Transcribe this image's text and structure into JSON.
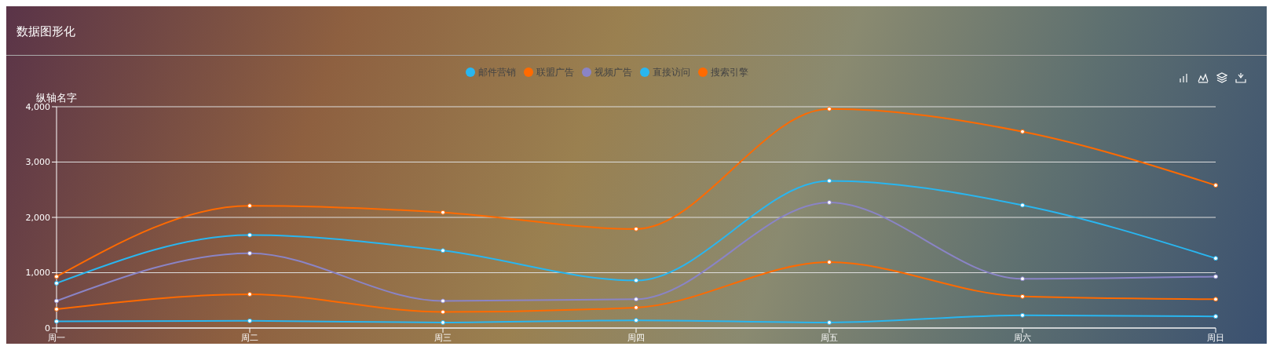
{
  "chart_data": {
    "type": "line",
    "title": "数据图形化",
    "ylabel": "纵轴名字",
    "categories": [
      "周一",
      "周二",
      "周三",
      "周四",
      "周五",
      "周六",
      "周日"
    ],
    "series": [
      {
        "name": "邮件营销",
        "color": "#29b6f0",
        "values": [
          120,
          130,
          100,
          140,
          100,
          230,
          210
        ]
      },
      {
        "name": "联盟广告",
        "color": "#ff6a00",
        "values": [
          340,
          610,
          290,
          370,
          1190,
          570,
          520
        ]
      },
      {
        "name": "视频广告",
        "color": "#8a84c6",
        "values": [
          490,
          1350,
          490,
          520,
          2270,
          890,
          930
        ]
      },
      {
        "name": "直接访问",
        "color": "#29b6f0",
        "values": [
          810,
          1680,
          1400,
          860,
          2660,
          2220,
          1260
        ]
      },
      {
        "name": "搜索引擎",
        "color": "#ff6a00",
        "values": [
          930,
          2210,
          2090,
          1790,
          3960,
          3550,
          2580
        ]
      }
    ],
    "ylim": [
      0,
      4000
    ],
    "yticks": [
      {
        "value": 0,
        "label": "0"
      },
      {
        "value": 1000,
        "label": "1,000"
      },
      {
        "value": 2000,
        "label": "2,000"
      },
      {
        "value": 3000,
        "label": "3,000"
      },
      {
        "value": 4000,
        "label": "4,000"
      }
    ],
    "grid": "y",
    "legend": "top",
    "marker": "circle",
    "line_style": "solid"
  }
}
